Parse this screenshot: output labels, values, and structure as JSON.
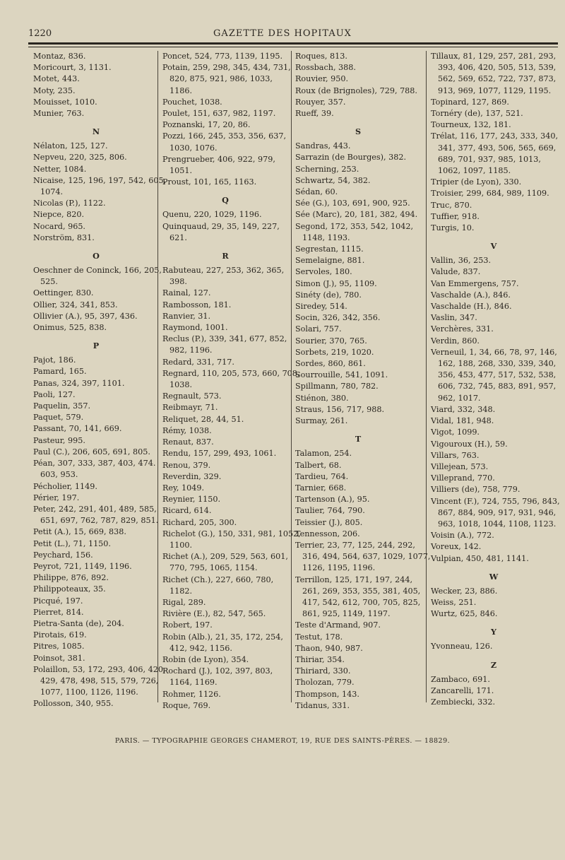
{
  "header": {
    "page_number": "1220",
    "title": "GAZETTE DES HOPITAUX"
  },
  "columns": [
    [
      {
        "lines": [
          "Montaz, 836."
        ]
      },
      {
        "lines": [
          "Moricourt, 3, 1131."
        ]
      },
      {
        "lines": [
          "Motet, 443."
        ]
      },
      {
        "lines": [
          "Moty, 235."
        ]
      },
      {
        "lines": [
          "Mouisset, 1010."
        ]
      },
      {
        "lines": [
          "Munier, 763."
        ]
      },
      {
        "letter": "N"
      },
      {
        "lines": [
          "Nélaton, 125, 127."
        ]
      },
      {
        "lines": [
          "Nepveu, 220, 325, 806."
        ]
      },
      {
        "lines": [
          "Netter, 1084."
        ]
      },
      {
        "lines": [
          "Nicaise, 125, 196, 197, 542, 605,",
          "1074."
        ]
      },
      {
        "lines": [
          "Nicolas (P.), 1122."
        ]
      },
      {
        "lines": [
          "Niepce, 820."
        ]
      },
      {
        "lines": [
          "Nocard, 965."
        ]
      },
      {
        "lines": [
          "Norström, 831."
        ]
      },
      {
        "letter": "O"
      },
      {
        "lines": [
          "Oeschner de Coninck, 166, 205,",
          "525."
        ]
      },
      {
        "lines": [
          "Oettinger, 830."
        ]
      },
      {
        "lines": [
          "Ollier, 324, 341, 853."
        ]
      },
      {
        "lines": [
          "Ollivier (A.), 95, 397, 436."
        ]
      },
      {
        "lines": [
          "Onimus, 525, 838."
        ]
      },
      {
        "letter": "P"
      },
      {
        "lines": [
          "Pajot, 186."
        ]
      },
      {
        "lines": [
          "Pamard, 165."
        ]
      },
      {
        "lines": [
          "Panas, 324, 397, 1101."
        ]
      },
      {
        "lines": [
          "Paoli, 127."
        ]
      },
      {
        "lines": [
          "Paquelin, 357."
        ]
      },
      {
        "lines": [
          "Paquet, 579."
        ]
      },
      {
        "lines": [
          "Passant, 70, 141, 669."
        ]
      },
      {
        "lines": [
          "Pasteur, 995."
        ]
      },
      {
        "lines": [
          "Paul (C.), 206, 605, 691, 805."
        ]
      },
      {
        "lines": [
          "Péan, 307, 333, 387, 403, 474.",
          "603, 953."
        ]
      },
      {
        "lines": [
          "Pécholier, 1149."
        ]
      },
      {
        "lines": [
          "Périer, 197."
        ]
      },
      {
        "lines": [
          "Peter, 242, 291, 401, 489, 585,",
          "651, 697, 762, 787, 829, 851."
        ]
      },
      {
        "lines": [
          "Petit (A.), 15, 669, 838."
        ]
      },
      {
        "lines": [
          "Petit (L.), 71, 1150."
        ]
      },
      {
        "lines": [
          "Peychard, 156."
        ]
      },
      {
        "lines": [
          "Peyrot, 721, 1149, 1196."
        ]
      },
      {
        "lines": [
          "Philippe, 876, 892."
        ]
      },
      {
        "lines": [
          "Philippoteaux, 35."
        ]
      },
      {
        "lines": [
          "Picqué, 197."
        ]
      },
      {
        "lines": [
          "Pierret, 814."
        ]
      },
      {
        "lines": [
          "Pietra-Santa (de), 204."
        ]
      },
      {
        "lines": [
          "Pirotais, 619."
        ]
      },
      {
        "lines": [
          "Pitres, 1085."
        ]
      },
      {
        "lines": [
          "Poinsot, 381."
        ]
      },
      {
        "lines": [
          "Polaillon, 53, 172, 293, 406, 420,",
          "429, 478, 498, 515, 579, 726,",
          "1077, 1100, 1126, 1196."
        ]
      },
      {
        "lines": [
          "Pollosson, 340, 955."
        ]
      }
    ],
    [
      {
        "lines": [
          "Poncet, 524, 773, 1139, 1195."
        ]
      },
      {
        "lines": [
          "Potain, 259, 298, 345, 434, 731,",
          "820, 875, 921, 986, 1033,",
          "1186."
        ]
      },
      {
        "lines": [
          "Pouchet, 1038."
        ]
      },
      {
        "lines": [
          "Poulet, 151, 637, 982, 1197."
        ]
      },
      {
        "lines": [
          "Poznanski, 17, 20, 86."
        ]
      },
      {
        "lines": [
          "Pozzi, 166, 245, 353, 356, 637,",
          "1030, 1076."
        ]
      },
      {
        "lines": [
          "Prengrueber, 406, 922, 979,",
          "1051."
        ]
      },
      {
        "lines": [
          "Proust, 101, 165, 1163."
        ]
      },
      {
        "letter": "Q"
      },
      {
        "lines": [
          "Quenu, 220, 1029, 1196."
        ]
      },
      {
        "lines": [
          "Quinquaud, 29, 35, 149, 227,",
          "621."
        ]
      },
      {
        "letter": "R"
      },
      {
        "lines": [
          "Rabuteau, 227, 253, 362, 365,",
          "398."
        ]
      },
      {
        "lines": [
          "Rainal, 127."
        ]
      },
      {
        "lines": [
          "Rambosson, 181."
        ]
      },
      {
        "lines": [
          "Ranvier, 31."
        ]
      },
      {
        "lines": [
          "Raymond, 1001."
        ]
      },
      {
        "lines": [
          "Reclus (P.), 339, 341, 677, 852,",
          "982, 1196."
        ]
      },
      {
        "lines": [
          "Redard, 331, 717."
        ]
      },
      {
        "lines": [
          "Regnard, 110, 205, 573, 660, 708,",
          "1038."
        ]
      },
      {
        "lines": [
          "Regnault, 573."
        ]
      },
      {
        "lines": [
          "Reibmayr, 71."
        ]
      },
      {
        "lines": [
          "Reliquet, 28, 44, 51."
        ]
      },
      {
        "lines": [
          "Rémy, 1038."
        ]
      },
      {
        "lines": [
          "Renaut, 837."
        ]
      },
      {
        "lines": [
          "Rendu, 157, 299, 493, 1061."
        ]
      },
      {
        "lines": [
          "Renou, 379."
        ]
      },
      {
        "lines": [
          "Reverdin, 329."
        ]
      },
      {
        "lines": [
          "Rey, 1049."
        ]
      },
      {
        "lines": [
          "Reynier, 1150."
        ]
      },
      {
        "lines": [
          "Ricard, 614."
        ]
      },
      {
        "lines": [
          "Richard, 205, 300."
        ]
      },
      {
        "lines": [
          "Richelot (G.), 150, 331, 981, 1052,",
          "1100."
        ]
      },
      {
        "lines": [
          "Richet (A.), 209, 529, 563, 601,",
          "770, 795, 1065, 1154."
        ]
      },
      {
        "lines": [
          "Richet (Ch.), 227, 660, 780,",
          "1182."
        ]
      },
      {
        "lines": [
          "Rigal, 289."
        ]
      },
      {
        "lines": [
          "Rivière (E.), 82, 547, 565."
        ]
      },
      {
        "lines": [
          "Robert, 197."
        ]
      },
      {
        "lines": [
          "Robin (Alb.), 21, 35, 172, 254,",
          "412, 942, 1156."
        ]
      },
      {
        "lines": [
          "Robin (de Lyon), 354."
        ]
      },
      {
        "lines": [
          "Rochard (J.), 102, 397, 803,",
          "1164, 1169."
        ]
      },
      {
        "lines": [
          "Rohmer, 1126."
        ]
      },
      {
        "lines": [
          "Roque, 769."
        ]
      }
    ],
    [
      {
        "lines": [
          "Roques, 813."
        ]
      },
      {
        "lines": [
          "Rossbach, 388."
        ]
      },
      {
        "lines": [
          "Rouvier, 950."
        ]
      },
      {
        "lines": [
          "Roux (de Brignoles), 729, 788."
        ]
      },
      {
        "lines": [
          "Rouyer, 357."
        ]
      },
      {
        "lines": [
          "Rueff, 39."
        ]
      },
      {
        "letter": "S"
      },
      {
        "lines": [
          "Sandras, 443."
        ]
      },
      {
        "lines": [
          "Sarrazin (de Bourges), 382."
        ]
      },
      {
        "lines": [
          "Scherning, 253."
        ]
      },
      {
        "lines": [
          "Schwartz, 54, 382."
        ]
      },
      {
        "lines": [
          "Sédan, 60."
        ]
      },
      {
        "lines": [
          "Sée (G.), 103, 691, 900, 925."
        ]
      },
      {
        "lines": [
          "Sée (Marc), 20, 181, 382, 494."
        ]
      },
      {
        "lines": [
          "Segond, 172, 353, 542, 1042,",
          "1148, 1193."
        ]
      },
      {
        "lines": [
          "Segrestan, 1115."
        ]
      },
      {
        "lines": [
          "Semelaigne, 881."
        ]
      },
      {
        "lines": [
          "Servoles, 180."
        ]
      },
      {
        "lines": [
          "Simon (J.), 95, 1109."
        ]
      },
      {
        "lines": [
          "Sinéty (de), 780."
        ]
      },
      {
        "lines": [
          "Siredey, 514."
        ]
      },
      {
        "lines": [
          "Socin, 326, 342, 356."
        ]
      },
      {
        "lines": [
          "Solari, 757."
        ]
      },
      {
        "lines": [
          "Sourier, 370, 765."
        ]
      },
      {
        "lines": [
          "Sorbets, 219, 1020."
        ]
      },
      {
        "lines": [
          "Sordes, 860, 861."
        ]
      },
      {
        "lines": [
          "Sourrouille, 541, 1091."
        ]
      },
      {
        "lines": [
          "Spillmann, 780, 782."
        ]
      },
      {
        "lines": [
          "Stiénon, 380."
        ]
      },
      {
        "lines": [
          "Straus, 156, 717, 988."
        ]
      },
      {
        "lines": [
          "Surmay, 261."
        ]
      },
      {
        "letter": "T"
      },
      {
        "lines": [
          "Talamon, 254."
        ]
      },
      {
        "lines": [
          "Talbert, 68."
        ]
      },
      {
        "lines": [
          "Tardieu, 764."
        ]
      },
      {
        "lines": [
          "Tarnier, 668."
        ]
      },
      {
        "lines": [
          "Tartenson (A.), 95."
        ]
      },
      {
        "lines": [
          "Taulier, 764, 790."
        ]
      },
      {
        "lines": [
          "Teissier (J.), 805."
        ]
      },
      {
        "lines": [
          "Tennesson, 206."
        ]
      },
      {
        "lines": [
          "Terrier, 23, 77, 125, 244, 292,",
          "316, 494, 564, 637, 1029, 1077,",
          "1126, 1195, 1196."
        ]
      },
      {
        "lines": [
          "Terrillon, 125, 171, 197, 244,",
          "261, 269, 353, 355, 381, 405,",
          "417, 542, 612, 700, 705, 825,",
          "861, 925, 1149, 1197."
        ]
      },
      {
        "lines": [
          "Teste d'Armand, 907."
        ]
      },
      {
        "lines": [
          "Testut, 178."
        ]
      },
      {
        "lines": [
          "Thaon, 940, 987."
        ]
      },
      {
        "lines": [
          "Thiriar, 354."
        ]
      },
      {
        "lines": [
          "Thiriard, 330."
        ]
      },
      {
        "lines": [
          "Tholozan, 779."
        ]
      },
      {
        "lines": [
          "Thompson, 143."
        ]
      },
      {
        "lines": [
          "Tidanus, 331."
        ]
      }
    ],
    [
      {
        "lines": [
          "Tillaux, 81, 129, 257, 281, 293,",
          "393, 406, 420, 505, 513, 539,",
          "562, 569, 652, 722, 737, 873,",
          "913, 969, 1077, 1129, 1195."
        ]
      },
      {
        "lines": [
          "Topinard, 127, 869."
        ]
      },
      {
        "lines": [
          "Tornéry (de), 137, 521."
        ]
      },
      {
        "lines": [
          "Tourneux, 132, 181."
        ]
      },
      {
        "lines": [
          "Trélat, 116, 177, 243, 333, 340,",
          "341, 377, 493, 506, 565, 669,",
          "689, 701, 937, 985, 1013,",
          "1062, 1097, 1185."
        ]
      },
      {
        "lines": [
          "Tripier (de Lyon), 330."
        ]
      },
      {
        "lines": [
          "Troisier, 299, 684, 989, 1109."
        ]
      },
      {
        "lines": [
          "Truc, 870."
        ]
      },
      {
        "lines": [
          "Tuffier, 918."
        ]
      },
      {
        "lines": [
          "Turgis, 10."
        ]
      },
      {
        "letter": "V"
      },
      {
        "lines": [
          "Vallin, 36, 253."
        ]
      },
      {
        "lines": [
          "Valude, 837."
        ]
      },
      {
        "lines": [
          "Van Emmergens, 757."
        ]
      },
      {
        "lines": [
          "Vaschalde (A.), 846."
        ]
      },
      {
        "lines": [
          "Vaschalde (H.), 846."
        ]
      },
      {
        "lines": [
          "Vaslin, 347."
        ]
      },
      {
        "lines": [
          "Verchères, 331."
        ]
      },
      {
        "lines": [
          "Verdin, 860."
        ]
      },
      {
        "lines": [
          "Verneuil, 1, 34, 66, 78, 97, 146,",
          "162, 188, 268, 330, 339, 340,",
          "356, 453, 477, 517, 532, 538,",
          "606, 732, 745, 883, 891, 957,",
          "962, 1017."
        ]
      },
      {
        "lines": [
          "Viard, 332, 348."
        ]
      },
      {
        "lines": [
          "Vidal, 181, 948."
        ]
      },
      {
        "lines": [
          "Vigot, 1099."
        ]
      },
      {
        "lines": [
          "Vigouroux (H.), 59."
        ]
      },
      {
        "lines": [
          "Villars, 763."
        ]
      },
      {
        "lines": [
          "Villejean, 573."
        ]
      },
      {
        "lines": [
          "Villeprand, 770."
        ]
      },
      {
        "lines": [
          "Villiers (de), 758, 779."
        ]
      },
      {
        "lines": [
          "Vincent (F.), 724, 755, 796, 843,",
          "867, 884, 909, 917, 931, 946,",
          "963, 1018, 1044, 1108, 1123."
        ]
      },
      {
        "lines": [
          "Voisin (A.), 772."
        ]
      },
      {
        "lines": [
          "Voreux, 142."
        ]
      },
      {
        "lines": [
          "Vulpian, 450, 481, 1141."
        ]
      },
      {
        "letter": "W"
      },
      {
        "lines": [
          "Wecker, 23, 886."
        ]
      },
      {
        "lines": [
          "Weiss, 251."
        ]
      },
      {
        "lines": [
          "Wurtz, 625, 846."
        ]
      },
      {
        "letter": "Y"
      },
      {
        "lines": [
          "Yvonneau, 126."
        ]
      },
      {
        "letter": "Z"
      },
      {
        "lines": [
          "Zambaco, 691."
        ]
      },
      {
        "lines": [
          "Zancarelli, 171."
        ]
      },
      {
        "lines": [
          "Zembiecki, 332."
        ]
      }
    ]
  ],
  "footer": {
    "imprint": "PARIS. — TYPOGRAPHIE GEORGES CHAMEROT, 19, RUE DES SAINTS-PÈRES. — 18829."
  }
}
